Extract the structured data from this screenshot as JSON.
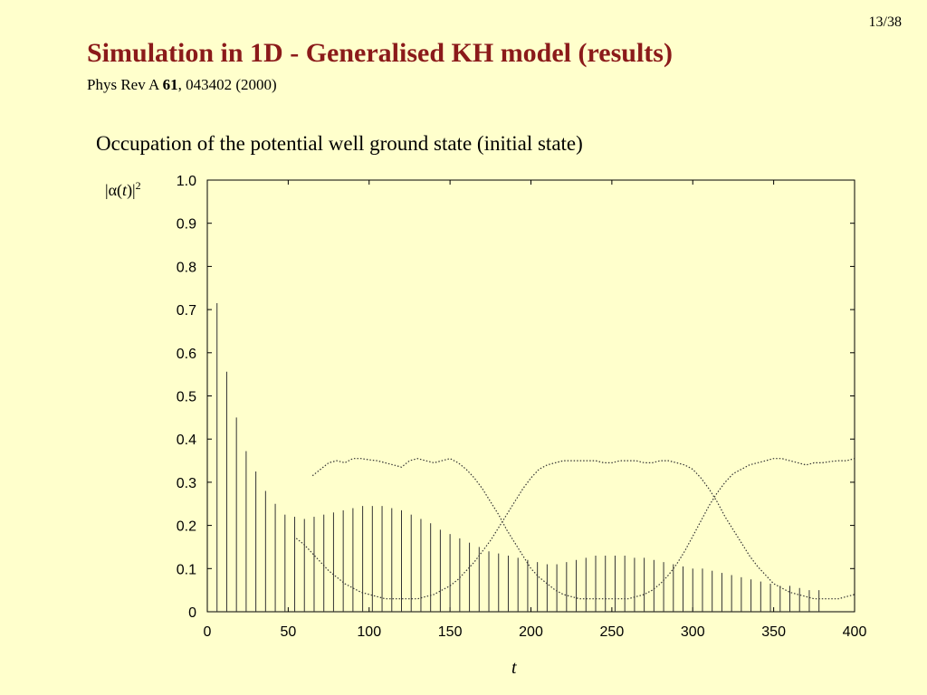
{
  "slide": {
    "page_number": "13/38",
    "title": "Simulation in 1D - Generalised KH model (results)",
    "reference_prefix": "Phys Rev A ",
    "reference_volume": "61",
    "reference_suffix": ", 043402 (2000)",
    "subtitle": "Occupation of the potential well ground state (initial state)"
  },
  "axis_labels": {
    "y_pipe_open": "|",
    "y_alpha": "α",
    "y_paren_open": "(",
    "y_t": "t",
    "y_paren_close": ")|",
    "y_power": "2",
    "x": "t"
  },
  "colors": {
    "background": "#ffffcc",
    "title": "#8b1a1a",
    "plot_background": "#ffffcc",
    "line": "#333333"
  },
  "chart_data": {
    "type": "line",
    "xlim": [
      0,
      400
    ],
    "ylim": [
      0,
      1.0
    ],
    "x_ticks": [
      0,
      50,
      100,
      150,
      200,
      250,
      300,
      350,
      400
    ],
    "x_tick_labels": [
      "0",
      "50",
      "100",
      "150",
      "200",
      "250",
      "300",
      "350",
      "400"
    ],
    "y_ticks": [
      0,
      0.1,
      0.2,
      0.3,
      0.4,
      0.5,
      0.6,
      0.7,
      0.8,
      0.9,
      1.0
    ],
    "y_tick_labels": [
      "0",
      "0.1",
      "0.2",
      "0.3",
      "0.4",
      "0.5",
      "0.6",
      "0.7",
      "0.8",
      "0.9",
      "1.0"
    ],
    "grid": false,
    "series": [
      {
        "style": "solid",
        "note_kind": "spikes",
        "x": [
          6,
          12,
          18,
          24,
          30,
          36,
          42,
          48,
          54,
          60,
          66,
          72,
          78,
          84,
          90,
          96,
          102,
          108,
          114,
          120,
          126,
          132,
          138,
          144,
          150,
          156,
          162,
          168,
          174,
          180,
          186,
          192,
          198,
          204,
          210,
          216,
          222,
          228,
          234,
          240,
          246,
          252,
          258,
          264,
          270,
          276,
          282,
          288,
          294,
          300,
          306,
          312,
          318,
          324,
          330,
          336,
          342,
          348,
          354,
          360,
          366,
          372,
          378
        ],
        "y": [
          0.715,
          0.556,
          0.45,
          0.372,
          0.325,
          0.28,
          0.25,
          0.225,
          0.22,
          0.215,
          0.22,
          0.225,
          0.23,
          0.235,
          0.24,
          0.245,
          0.245,
          0.245,
          0.24,
          0.235,
          0.225,
          0.215,
          0.205,
          0.19,
          0.18,
          0.17,
          0.16,
          0.15,
          0.14,
          0.135,
          0.13,
          0.125,
          0.12,
          0.115,
          0.11,
          0.11,
          0.115,
          0.12,
          0.125,
          0.13,
          0.13,
          0.13,
          0.13,
          0.125,
          0.125,
          0.12,
          0.115,
          0.11,
          0.105,
          0.1,
          0.1,
          0.095,
          0.09,
          0.085,
          0.08,
          0.075,
          0.07,
          0.065,
          0.06,
          0.06,
          0.055,
          0.05,
          0.05
        ]
      },
      {
        "style": "dotted",
        "x": [
          65,
          70,
          75,
          80,
          85,
          90,
          95,
          100,
          105,
          110,
          115,
          120,
          125,
          130,
          135,
          140,
          145,
          150,
          155,
          160,
          165,
          170,
          175,
          180,
          185,
          190,
          195,
          200,
          205,
          210,
          215,
          220,
          225,
          230,
          235,
          240,
          245,
          250,
          255,
          260,
          265,
          270,
          275,
          280,
          285,
          290,
          295,
          300,
          305,
          310,
          315,
          320,
          325,
          330,
          335,
          340,
          345,
          350,
          355,
          360,
          365,
          370,
          375,
          380,
          385,
          390,
          395,
          400
        ],
        "y": [
          0.315,
          0.33,
          0.345,
          0.35,
          0.345,
          0.355,
          0.355,
          0.352,
          0.35,
          0.345,
          0.34,
          0.335,
          0.35,
          0.355,
          0.35,
          0.345,
          0.35,
          0.355,
          0.345,
          0.33,
          0.31,
          0.285,
          0.255,
          0.225,
          0.19,
          0.16,
          0.13,
          0.1,
          0.08,
          0.065,
          0.05,
          0.04,
          0.035,
          0.03,
          0.03,
          0.03,
          0.03,
          0.03,
          0.03,
          0.03,
          0.035,
          0.04,
          0.05,
          0.065,
          0.085,
          0.11,
          0.14,
          0.175,
          0.21,
          0.245,
          0.275,
          0.3,
          0.32,
          0.33,
          0.34,
          0.345,
          0.35,
          0.355,
          0.355,
          0.35,
          0.345,
          0.34,
          0.345,
          0.345,
          0.348,
          0.35,
          0.35,
          0.355
        ]
      },
      {
        "style": "dotted",
        "x": [
          55,
          60,
          65,
          70,
          75,
          80,
          85,
          90,
          95,
          100,
          105,
          110,
          115,
          120,
          125,
          130,
          135,
          140,
          145,
          150,
          155,
          160,
          165,
          170,
          175,
          180,
          185,
          190,
          195,
          200,
          205,
          210,
          215,
          220,
          225,
          230,
          235,
          240,
          245,
          250,
          255,
          260,
          265,
          270,
          275,
          280,
          285,
          290,
          295,
          300,
          305,
          310,
          315,
          320,
          325,
          330,
          335,
          340,
          345,
          350,
          355,
          360,
          365,
          370,
          375,
          380,
          385,
          390,
          395,
          400
        ],
        "y": [
          0.17,
          0.155,
          0.135,
          0.115,
          0.095,
          0.08,
          0.065,
          0.055,
          0.045,
          0.04,
          0.035,
          0.03,
          0.03,
          0.03,
          0.03,
          0.03,
          0.035,
          0.04,
          0.05,
          0.06,
          0.075,
          0.095,
          0.115,
          0.14,
          0.165,
          0.195,
          0.225,
          0.255,
          0.285,
          0.31,
          0.33,
          0.34,
          0.345,
          0.35,
          0.35,
          0.35,
          0.35,
          0.35,
          0.345,
          0.345,
          0.35,
          0.35,
          0.35,
          0.345,
          0.345,
          0.35,
          0.35,
          0.345,
          0.34,
          0.33,
          0.31,
          0.285,
          0.255,
          0.22,
          0.19,
          0.16,
          0.13,
          0.105,
          0.085,
          0.065,
          0.055,
          0.045,
          0.04,
          0.035,
          0.03,
          0.03,
          0.03,
          0.03,
          0.035,
          0.04
        ]
      }
    ]
  }
}
